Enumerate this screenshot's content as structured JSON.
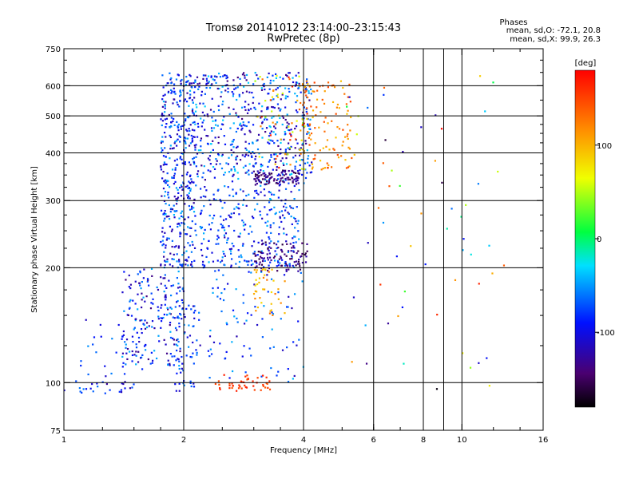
{
  "chart_data": {
    "type": "scatter",
    "title": "Tromsø 20141012 23:14:00–23:15:43",
    "subtitle": "RwPretec (8p)",
    "stats": {
      "heading": "Phases",
      "line_o": "mean, sd,O: -72.1, 20.8",
      "line_x": "mean, sd,X:  99.9, 26.3"
    },
    "xlabel": "Frequency [MHz]",
    "ylabel": "Stationary phase Virtual Height [km]",
    "x_scale": "log",
    "y_scale": "log",
    "xlim": [
      1,
      16
    ],
    "ylim": [
      75,
      750
    ],
    "x_ticks": [
      1,
      2,
      4,
      6,
      8,
      10,
      16
    ],
    "x_tick_labels": [
      "1",
      "2",
      "4",
      "6",
      "8",
      "10",
      "16"
    ],
    "x_minor_ticks": [
      1.25,
      1.5,
      1.75,
      2.5,
      3,
      3.5,
      5,
      6,
      7,
      9,
      12,
      14
    ],
    "y_ticks": [
      75,
      100,
      200,
      300,
      400,
      500,
      600,
      750
    ],
    "y_tick_labels": [
      "75",
      "100",
      "200",
      "300",
      "400",
      "500",
      "600",
      "750"
    ],
    "y_minor_ticks": [
      125,
      150,
      175,
      225,
      250,
      275,
      325,
      350,
      375,
      425,
      450,
      475,
      550,
      650,
      700
    ],
    "grid_x": [
      2,
      4,
      6,
      8,
      9,
      10
    ],
    "grid_y": [
      100,
      200,
      300,
      400,
      500,
      600
    ],
    "grid": true,
    "colorbar": {
      "label": "[deg]",
      "min": -180,
      "max": 180,
      "ticks": [
        -100,
        0,
        100
      ],
      "tick_labels": [
        "-100",
        "0",
        "100"
      ],
      "placement": "right"
    },
    "clusters": [
      {
        "x": [
          1.0,
          1.5
        ],
        "y": [
          93,
          102
        ],
        "n": 25,
        "phase": [
          -130,
          -50
        ]
      },
      {
        "x": [
          1.1,
          1.6
        ],
        "y": [
          100,
          150
        ],
        "n": 30,
        "phase": [
          -120,
          -50
        ]
      },
      {
        "x": [
          1.4,
          2.0
        ],
        "y": [
          110,
          200
        ],
        "n": 200,
        "phase": [
          -140,
          -40
        ]
      },
      {
        "x": [
          1.75,
          2.15
        ],
        "y": [
          200,
          650
        ],
        "n": 420,
        "phase": [
          -130,
          -40
        ]
      },
      {
        "x": [
          1.9,
          2.2
        ],
        "y": [
          95,
          160
        ],
        "n": 60,
        "phase": [
          -120,
          -50
        ]
      },
      {
        "x": [
          2.1,
          4.2
        ],
        "y": [
          330,
          650
        ],
        "n": 550,
        "phase": [
          -140,
          -30
        ]
      },
      {
        "x": [
          2.2,
          3.9
        ],
        "y": [
          200,
          330
        ],
        "n": 280,
        "phase": [
          -120,
          -40
        ]
      },
      {
        "x": [
          2.3,
          4.0
        ],
        "y": [
          100,
          200
        ],
        "n": 90,
        "phase": [
          -120,
          -40
        ]
      },
      {
        "x": [
          3.0,
          4.1
        ],
        "y": [
          195,
          235
        ],
        "n": 90,
        "phase": [
          -160,
          -120
        ]
      },
      {
        "x": [
          3.0,
          3.9
        ],
        "y": [
          330,
          360
        ],
        "n": 80,
        "phase": [
          -160,
          -120
        ]
      },
      {
        "x": [
          3.0,
          3.6
        ],
        "y": [
          150,
          200
        ],
        "n": 40,
        "phase": [
          80,
          130
        ]
      },
      {
        "x": [
          2.4,
          3.3
        ],
        "y": [
          95,
          105
        ],
        "n": 45,
        "phase": [
          140,
          170
        ]
      },
      {
        "x": [
          3.9,
          5.3
        ],
        "y": [
          360,
          620
        ],
        "n": 120,
        "phase": [
          90,
          150
        ]
      },
      {
        "x": [
          3.0,
          4.1
        ],
        "y": [
          360,
          650
        ],
        "n": 60,
        "phase": [
          40,
          170
        ]
      },
      {
        "x": [
          5.0,
          13.0
        ],
        "y": [
          95,
          650
        ],
        "n": 60,
        "phase": [
          -180,
          180
        ]
      }
    ],
    "points_note_omitted": false
  }
}
